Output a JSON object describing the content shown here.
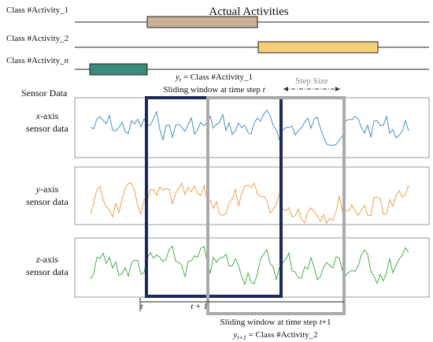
{
  "title": "Actual Activities",
  "activities": [
    {
      "prefix": "Class #Activity_",
      "suffix": "1"
    },
    {
      "prefix": "Class #Activity_",
      "suffix": "2"
    },
    {
      "prefix": "Class #Activity_",
      "suffix": "n"
    }
  ],
  "sensor_heading": "Sensor Data",
  "sensors": [
    {
      "var": "x",
      "axis": "-axis",
      "line2": "sensor data"
    },
    {
      "var": "y",
      "axis": "-axis",
      "line2": "sensor data"
    },
    {
      "var": "z",
      "axis": "-axis",
      "line2": "sensor data"
    }
  ],
  "window_t": {
    "label_var": "y",
    "label_sub": "t",
    "label_rest": " = Class #Activity_1",
    "caption": "Sliding window at time step ",
    "caption_var": "t"
  },
  "step_size": "Step Size",
  "time_axis": {
    "t": "t",
    "t1": "t + 1"
  },
  "window_t1": {
    "caption": "Sliding window at time step ",
    "caption_var": "t",
    "caption_rest": "+1",
    "label_var": "y",
    "label_sub": "t+1",
    "label_rest": " = Class #Activity_2"
  }
}
